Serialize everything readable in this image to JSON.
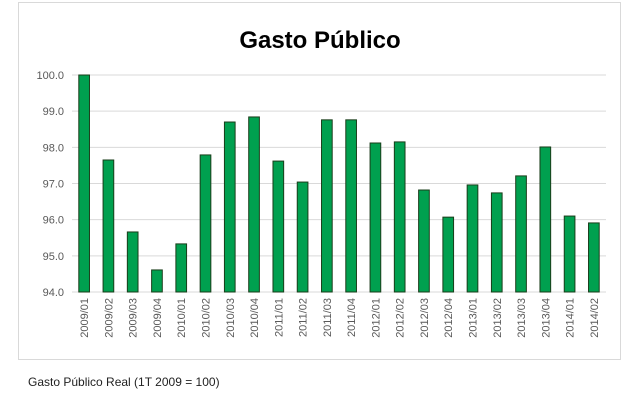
{
  "chart_data": {
    "type": "bar",
    "title": "Gasto Público",
    "categories": [
      "2009/01",
      "2009/02",
      "2009/03",
      "2009/04",
      "2010/01",
      "2010/02",
      "2010/03",
      "2010/04",
      "2011/01",
      "2011/02",
      "2011/03",
      "2011/04",
      "2012/01",
      "2012/02",
      "2012/03",
      "2012/04",
      "2013/01",
      "2013/02",
      "2013/03",
      "2013/04",
      "2014/01",
      "2014/02"
    ],
    "values": [
      100.0,
      97.65,
      95.66,
      94.61,
      95.33,
      97.79,
      98.7,
      98.84,
      97.62,
      97.04,
      98.76,
      98.76,
      98.12,
      98.15,
      96.82,
      96.07,
      96.96,
      96.74,
      97.21,
      98.01,
      96.1,
      95.91
    ],
    "color": "#00a04f",
    "ylim": [
      94,
      100
    ],
    "yticks": [
      {
        "value": 94,
        "label": "94.0"
      },
      {
        "value": 95,
        "label": "95.0"
      },
      {
        "value": 96,
        "label": "96.0"
      },
      {
        "value": 97,
        "label": "97.0"
      },
      {
        "value": 98,
        "label": "98.0"
      },
      {
        "value": 99,
        "label": "99.0"
      },
      {
        "value": 100,
        "label": "100.0"
      }
    ],
    "grid": true
  },
  "caption": "Gasto Público Real (1T 2009 = 100)"
}
